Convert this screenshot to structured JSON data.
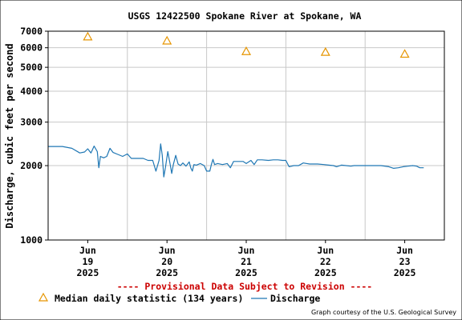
{
  "chart_data": {
    "type": "line",
    "title": "USGS 12422500 Spokane River at Spokane, WA",
    "ylabel": "Discharge, cubic feet per second",
    "yscale": "log",
    "ylim": [
      1000,
      7000
    ],
    "yticks": [
      1000,
      2000,
      3000,
      4000,
      5000,
      6000,
      7000
    ],
    "xlim": [
      0,
      5
    ],
    "xticks": [
      {
        "x": 0.5,
        "lines": [
          "Jun",
          "19",
          "2025"
        ]
      },
      {
        "x": 1.5,
        "lines": [
          "Jun",
          "20",
          "2025"
        ]
      },
      {
        "x": 2.5,
        "lines": [
          "Jun",
          "21",
          "2025"
        ]
      },
      {
        "x": 3.5,
        "lines": [
          "Jun",
          "22",
          "2025"
        ]
      },
      {
        "x": 4.5,
        "lines": [
          "Jun",
          "23",
          "2025"
        ]
      }
    ],
    "grid": true,
    "series": [
      {
        "name": "Discharge",
        "color": "#1f77b4",
        "points": [
          [
            0.0,
            2390
          ],
          [
            0.18,
            2390
          ],
          [
            0.3,
            2350
          ],
          [
            0.4,
            2250
          ],
          [
            0.46,
            2270
          ],
          [
            0.5,
            2340
          ],
          [
            0.54,
            2250
          ],
          [
            0.58,
            2400
          ],
          [
            0.62,
            2280
          ],
          [
            0.64,
            1960
          ],
          [
            0.66,
            2180
          ],
          [
            0.7,
            2150
          ],
          [
            0.74,
            2180
          ],
          [
            0.78,
            2350
          ],
          [
            0.82,
            2260
          ],
          [
            0.88,
            2220
          ],
          [
            0.94,
            2180
          ],
          [
            1.0,
            2230
          ],
          [
            1.05,
            2140
          ],
          [
            1.1,
            2140
          ],
          [
            1.2,
            2140
          ],
          [
            1.26,
            2100
          ],
          [
            1.32,
            2100
          ],
          [
            1.36,
            1900
          ],
          [
            1.4,
            2100
          ],
          [
            1.42,
            2450
          ],
          [
            1.44,
            2200
          ],
          [
            1.46,
            1800
          ],
          [
            1.48,
            1960
          ],
          [
            1.51,
            2280
          ],
          [
            1.54,
            2020
          ],
          [
            1.56,
            1860
          ],
          [
            1.58,
            2020
          ],
          [
            1.61,
            2200
          ],
          [
            1.64,
            2030
          ],
          [
            1.67,
            2000
          ],
          [
            1.7,
            2050
          ],
          [
            1.74,
            1990
          ],
          [
            1.78,
            2070
          ],
          [
            1.8,
            1960
          ],
          [
            1.82,
            1900
          ],
          [
            1.84,
            2020
          ],
          [
            1.87,
            2010
          ],
          [
            1.92,
            2040
          ],
          [
            1.97,
            2000
          ],
          [
            2.0,
            1900
          ],
          [
            2.04,
            1900
          ],
          [
            2.06,
            2020
          ],
          [
            2.08,
            2120
          ],
          [
            2.1,
            2020
          ],
          [
            2.14,
            2040
          ],
          [
            2.2,
            2020
          ],
          [
            2.26,
            2040
          ],
          [
            2.3,
            1960
          ],
          [
            2.34,
            2080
          ],
          [
            2.4,
            2080
          ],
          [
            2.46,
            2080
          ],
          [
            2.5,
            2040
          ],
          [
            2.56,
            2100
          ],
          [
            2.6,
            2020
          ],
          [
            2.64,
            2110
          ],
          [
            2.7,
            2110
          ],
          [
            2.78,
            2100
          ],
          [
            2.84,
            2110
          ],
          [
            2.9,
            2110
          ],
          [
            2.96,
            2100
          ],
          [
            3.0,
            2100
          ],
          [
            3.04,
            1980
          ],
          [
            3.1,
            2000
          ],
          [
            3.16,
            2000
          ],
          [
            3.22,
            2050
          ],
          [
            3.3,
            2030
          ],
          [
            3.4,
            2030
          ],
          [
            3.48,
            2020
          ],
          [
            3.54,
            2010
          ],
          [
            3.6,
            2000
          ],
          [
            3.64,
            1980
          ],
          [
            3.7,
            2010
          ],
          [
            3.76,
            2000
          ],
          [
            3.82,
            1990
          ],
          [
            3.86,
            2000
          ],
          [
            3.94,
            2000
          ],
          [
            4.0,
            2000
          ],
          [
            4.1,
            2000
          ],
          [
            4.2,
            2000
          ],
          [
            4.3,
            1980
          ],
          [
            4.36,
            1950
          ],
          [
            4.42,
            1960
          ],
          [
            4.48,
            1980
          ],
          [
            4.54,
            1990
          ],
          [
            4.6,
            2000
          ],
          [
            4.65,
            1990
          ],
          [
            4.69,
            1960
          ],
          [
            4.74,
            1960
          ]
        ]
      },
      {
        "name": "Median daily statistic (134 years)",
        "color": "#e69500",
        "marker": "triangle",
        "points": [
          [
            0.5,
            6650
          ],
          [
            1.5,
            6400
          ],
          [
            2.5,
            5800
          ],
          [
            3.5,
            5760
          ],
          [
            4.5,
            5660
          ]
        ]
      }
    ],
    "legend": {
      "placement": "bottom",
      "median_label": "Median daily statistic (134 years)",
      "discharge_label": "Discharge"
    },
    "provisional_note": "---- Provisional Data Subject to Revision ----",
    "credit": "Graph courtesy of the U.S. Geological Survey"
  },
  "colors": {
    "background": "#ffffff",
    "grid": "#c8c8c8",
    "frame": "#000000",
    "discharge": "#1f77b4",
    "median": "#e69500",
    "provisional": "#cc0000"
  }
}
